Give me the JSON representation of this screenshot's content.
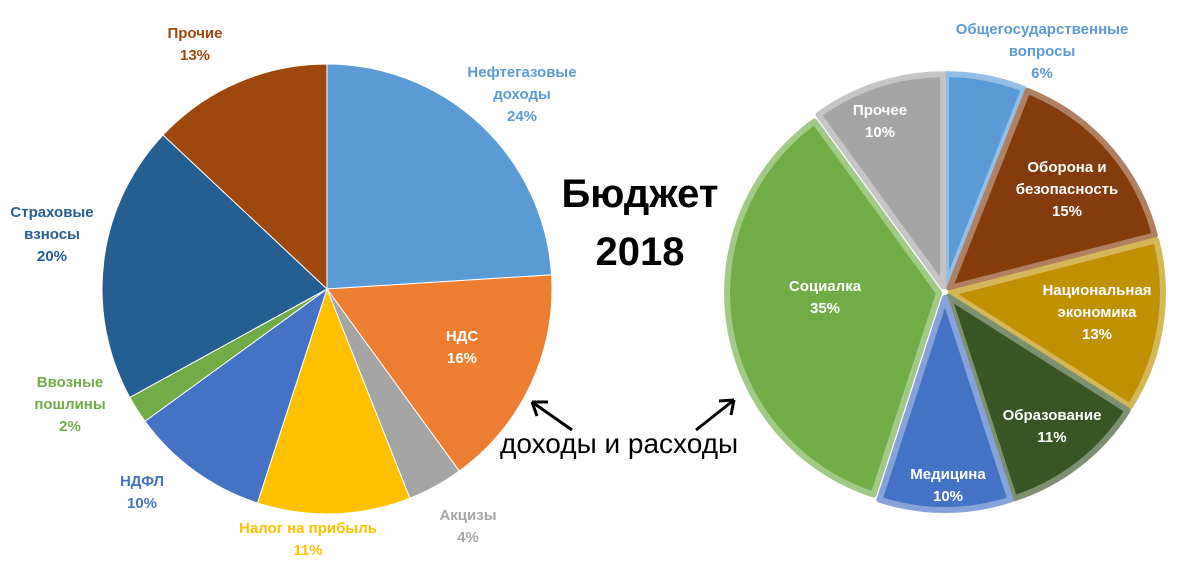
{
  "title": "Бюджет 2018",
  "annotation": "доходы и расходы",
  "chart_data": [
    {
      "type": "pie",
      "categories": [
        "Нефтегазовые доходы",
        "НДС",
        "Акцизы",
        "Налог на прибыль",
        "НДФЛ",
        "Ввозные пошлины",
        "Страховые взносы",
        "Прочие"
      ],
      "values": [
        24,
        16,
        4,
        11,
        10,
        2,
        20,
        13
      ],
      "value_labels": [
        "24%",
        "16%",
        "4%",
        "11%",
        "10%",
        "2%",
        "20%",
        "13%"
      ],
      "colors": [
        "#5b9bd5",
        "#ed7d31",
        "#a5a5a5",
        "#ffc000",
        "#4472c4",
        "#70ad47",
        "#255e91",
        "#9e480e"
      ],
      "label_colors": [
        "#5b9bd5",
        "#ffffff",
        "#a5a5a5",
        "#ffc000",
        "#4472c4",
        "#70ad47",
        "#255e91",
        "#9e480e"
      ]
    },
    {
      "type": "pie",
      "categories": [
        "Общегосударственные вопросы",
        "Оборона и безопасность",
        "Национальная экономика",
        "Образование",
        "Медицина",
        "Социалка",
        "Прочее"
      ],
      "values": [
        6,
        15,
        13,
        11,
        10,
        35,
        10
      ],
      "value_labels": [
        "6%",
        "15%",
        "13%",
        "11%",
        "10%",
        "35%",
        "10%"
      ],
      "colors": [
        "#5b9bd5",
        "#843c0c",
        "#bf9000",
        "#375623",
        "#4472c4",
        "#70ad47",
        "#a5a5a5"
      ],
      "label_colors": [
        "#5b9bd5",
        "#ffffff",
        "#ffffff",
        "#ffffff",
        "#ffffff",
        "#ffffff",
        "#ffffff"
      ]
    }
  ]
}
